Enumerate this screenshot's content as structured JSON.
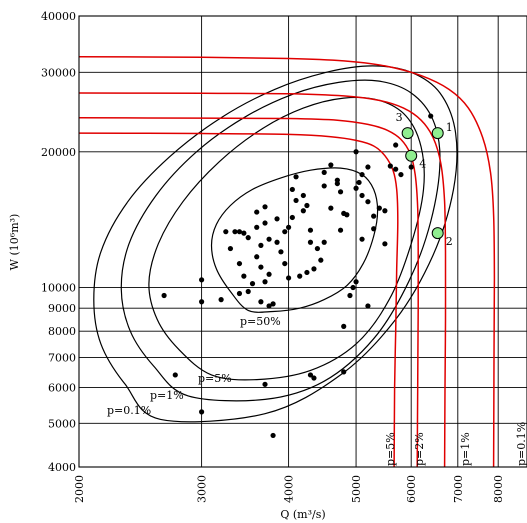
{
  "chart_data": {
    "type": "scatter",
    "xlabel": "Q (m³/s)",
    "ylabel": "W (10⁶m³)",
    "xscale": "log",
    "yscale": "log",
    "xlim": [
      2000,
      8800
    ],
    "ylim": [
      4000,
      40000
    ],
    "grid": true,
    "xticks": [
      2000,
      3000,
      4000,
      5000,
      6000,
      7000,
      8000
    ],
    "xtick_labels": [
      "2000",
      "3000",
      "4000",
      "5000",
      "6000",
      "7000",
      "8000"
    ],
    "yticks": [
      4000,
      5000,
      6000,
      7000,
      8000,
      9000,
      10000,
      20000,
      30000,
      40000
    ],
    "ytick_labels": [
      "4000",
      "5000",
      "6000",
      "7000",
      "8000",
      "9000",
      "10000",
      "20000",
      "30000",
      "40000"
    ],
    "contours": [
      {
        "label": "p=50%",
        "points": [
          [
            3500,
            8900
          ],
          [
            3300,
            9800
          ],
          [
            3150,
            11000
          ],
          [
            3100,
            12400
          ],
          [
            3150,
            13800
          ],
          [
            3300,
            15200
          ],
          [
            3550,
            16500
          ],
          [
            3900,
            17500
          ],
          [
            4300,
            18200
          ],
          [
            4750,
            18400
          ],
          [
            5100,
            17800
          ],
          [
            5300,
            16500
          ],
          [
            5370,
            14800
          ],
          [
            5300,
            13000
          ],
          [
            5120,
            11300
          ],
          [
            4850,
            10100
          ],
          [
            4500,
            9400
          ],
          [
            4150,
            9000
          ],
          [
            3800,
            8850
          ],
          [
            3500,
            8900
          ]
        ]
      },
      {
        "label": "p=5%",
        "points": [
          [
            3100,
            6400
          ],
          [
            2780,
            7300
          ],
          [
            2590,
            8500
          ],
          [
            2520,
            10200
          ],
          [
            2600,
            12500
          ],
          [
            2820,
            15500
          ],
          [
            3180,
            19000
          ],
          [
            3650,
            22400
          ],
          [
            4200,
            25000
          ],
          [
            4800,
            26300
          ],
          [
            5400,
            26000
          ],
          [
            5900,
            24000
          ],
          [
            6200,
            20500
          ],
          [
            6250,
            16500
          ],
          [
            6000,
            12500
          ],
          [
            5580,
            9400
          ],
          [
            5000,
            7500
          ],
          [
            4300,
            6550
          ],
          [
            3600,
            6250
          ],
          [
            3100,
            6400
          ]
        ]
      },
      {
        "label": "p=1%",
        "points": [
          [
            2870,
            5750
          ],
          [
            2560,
            6700
          ],
          [
            2370,
            8000
          ],
          [
            2300,
            9900
          ],
          [
            2360,
            12500
          ],
          [
            2580,
            16000
          ],
          [
            2950,
            20000
          ],
          [
            3450,
            23800
          ],
          [
            4050,
            26800
          ],
          [
            4720,
            28500
          ],
          [
            5380,
            28700
          ],
          [
            6000,
            27000
          ],
          [
            6450,
            23500
          ],
          [
            6600,
            19000
          ],
          [
            6400,
            14000
          ],
          [
            5950,
            10300
          ],
          [
            5300,
            7700
          ],
          [
            4500,
            6200
          ],
          [
            3700,
            5650
          ],
          [
            2870,
            5750
          ]
        ]
      },
      {
        "label": "p=0.1%",
        "points": [
          [
            2620,
            5100
          ],
          [
            2330,
            6100
          ],
          [
            2150,
            7500
          ],
          [
            2100,
            9400
          ],
          [
            2150,
            12000
          ],
          [
            2350,
            15500
          ],
          [
            2700,
            19500
          ],
          [
            3200,
            23800
          ],
          [
            3820,
            27500
          ],
          [
            4530,
            30000
          ],
          [
            5280,
            31000
          ],
          [
            6000,
            30000
          ],
          [
            6600,
            27000
          ],
          [
            6950,
            22000
          ],
          [
            6900,
            16500
          ],
          [
            6450,
            11800
          ],
          [
            5700,
            8500
          ],
          [
            4750,
            6400
          ],
          [
            3700,
            5250
          ],
          [
            2620,
            5100
          ]
        ]
      }
    ],
    "red_curves": [
      {
        "label": "p=5%",
        "points": [
          [
            2000,
            22000
          ],
          [
            3000,
            21950
          ],
          [
            4000,
            21850
          ],
          [
            4600,
            21600
          ],
          [
            5000,
            21200
          ],
          [
            5300,
            20600
          ],
          [
            5500,
            19600
          ],
          [
            5650,
            18200
          ],
          [
            5720,
            16500
          ],
          [
            5740,
            14000
          ],
          [
            5720,
            11000
          ],
          [
            5700,
            8000
          ],
          [
            5680,
            6000
          ],
          [
            5670,
            4000
          ]
        ]
      },
      {
        "label": "p=2%",
        "points": [
          [
            2000,
            23800
          ],
          [
            3000,
            23750
          ],
          [
            4000,
            23700
          ],
          [
            4700,
            23500
          ],
          [
            5200,
            23000
          ],
          [
            5550,
            22300
          ],
          [
            5800,
            21300
          ],
          [
            5980,
            19800
          ],
          [
            6080,
            17800
          ],
          [
            6130,
            15000
          ],
          [
            6140,
            12000
          ],
          [
            6140,
            9000
          ],
          [
            6130,
            6000
          ],
          [
            6120,
            4000
          ]
        ]
      },
      {
        "label": "p=1%",
        "points": [
          [
            2000,
            27000
          ],
          [
            3000,
            26950
          ],
          [
            4000,
            26900
          ],
          [
            4800,
            26600
          ],
          [
            5400,
            26000
          ],
          [
            5850,
            25000
          ],
          [
            6200,
            23500
          ],
          [
            6450,
            21500
          ],
          [
            6620,
            18800
          ],
          [
            6700,
            15500
          ],
          [
            6720,
            12000
          ],
          [
            6720,
            8500
          ],
          [
            6710,
            6000
          ],
          [
            6700,
            4000
          ]
        ]
      },
      {
        "label": "p=0.1%",
        "points": [
          [
            2000,
            32500
          ],
          [
            3000,
            32400
          ],
          [
            4000,
            32200
          ],
          [
            4800,
            31800
          ],
          [
            5500,
            31000
          ],
          [
            6200,
            29500
          ],
          [
            6800,
            27500
          ],
          [
            7250,
            25000
          ],
          [
            7600,
            21500
          ],
          [
            7800,
            18000
          ],
          [
            7880,
            14500
          ],
          [
            7900,
            10500
          ],
          [
            7890,
            7000
          ],
          [
            7880,
            4000
          ]
        ]
      }
    ],
    "points": [
      [
        2650,
        9600
      ],
      [
        3000,
        10400
      ],
      [
        3000,
        9300
      ],
      [
        3200,
        9400
      ],
      [
        3250,
        13300
      ],
      [
        3350,
        13300
      ],
      [
        3400,
        13300
      ],
      [
        3300,
        12200
      ],
      [
        3400,
        11300
      ],
      [
        3450,
        10600
      ],
      [
        3600,
        11700
      ],
      [
        3450,
        13200
      ],
      [
        3500,
        12900
      ],
      [
        3550,
        10200
      ],
      [
        3400,
        9700
      ],
      [
        3500,
        9800
      ],
      [
        3650,
        12400
      ],
      [
        3700,
        13900
      ],
      [
        3600,
        14700
      ],
      [
        3700,
        15100
      ],
      [
        3600,
        13600
      ],
      [
        3750,
        12800
      ],
      [
        3650,
        11100
      ],
      [
        3700,
        10300
      ],
      [
        3750,
        10700
      ],
      [
        3650,
        9300
      ],
      [
        3800,
        9200
      ],
      [
        3750,
        9100
      ],
      [
        3850,
        12600
      ],
      [
        3850,
        14200
      ],
      [
        3950,
        13300
      ],
      [
        3900,
        12000
      ],
      [
        3950,
        11300
      ],
      [
        4000,
        10500
      ],
      [
        4000,
        13600
      ],
      [
        4050,
        14300
      ],
      [
        4100,
        15600
      ],
      [
        4050,
        16500
      ],
      [
        4100,
        17600
      ],
      [
        4200,
        16000
      ],
      [
        4200,
        14800
      ],
      [
        4250,
        15200
      ],
      [
        4300,
        13400
      ],
      [
        4300,
        12600
      ],
      [
        4400,
        12200
      ],
      [
        4450,
        11500
      ],
      [
        4350,
        11000
      ],
      [
        4250,
        10800
      ],
      [
        4150,
        10600
      ],
      [
        4500,
        16800
      ],
      [
        4500,
        18000
      ],
      [
        4600,
        18700
      ],
      [
        4700,
        17300
      ],
      [
        4700,
        17000
      ],
      [
        4750,
        16300
      ],
      [
        4800,
        14600
      ],
      [
        4850,
        14500
      ],
      [
        4750,
        13400
      ],
      [
        4950,
        10000
      ],
      [
        5000,
        10300
      ],
      [
        4900,
        9600
      ],
      [
        5100,
        12800
      ],
      [
        5000,
        16600
      ],
      [
        5050,
        17100
      ],
      [
        5100,
        17800
      ],
      [
        5100,
        16000
      ],
      [
        5000,
        20000
      ],
      [
        5200,
        15500
      ],
      [
        5300,
        14400
      ],
      [
        5300,
        13500
      ],
      [
        5400,
        15000
      ],
      [
        5500,
        14800
      ],
      [
        5500,
        12500
      ],
      [
        5600,
        18600
      ],
      [
        5700,
        20700
      ],
      [
        5700,
        18300
      ],
      [
        5800,
        17800
      ],
      [
        5900,
        22000
      ],
      [
        6000,
        18500
      ],
      [
        6400,
        24000
      ],
      [
        4600,
        15000
      ],
      [
        4500,
        12600
      ],
      [
        5200,
        18500
      ],
      [
        5200,
        9100
      ],
      [
        4800,
        8200
      ],
      [
        3700,
        6100
      ],
      [
        3800,
        4700
      ],
      [
        3000,
        5300
      ],
      [
        2750,
        6400
      ],
      [
        4300,
        6400
      ],
      [
        4350,
        6300
      ],
      [
        4800,
        6500
      ]
    ],
    "highlight_points": [
      {
        "label": "1",
        "x": 6550,
        "y": 22000
      },
      {
        "label": "2",
        "x": 6550,
        "y": 13200
      },
      {
        "label": "3",
        "x": 5930,
        "y": 22000
      },
      {
        "label": "4",
        "x": 6000,
        "y": 19600
      }
    ],
    "annotations": [
      "p=50%",
      "p=5%",
      "p=1%",
      "p=0.1%"
    ],
    "red_labels": [
      "p=5%",
      "p=2%",
      "p=1%",
      "p=0.1%"
    ]
  }
}
